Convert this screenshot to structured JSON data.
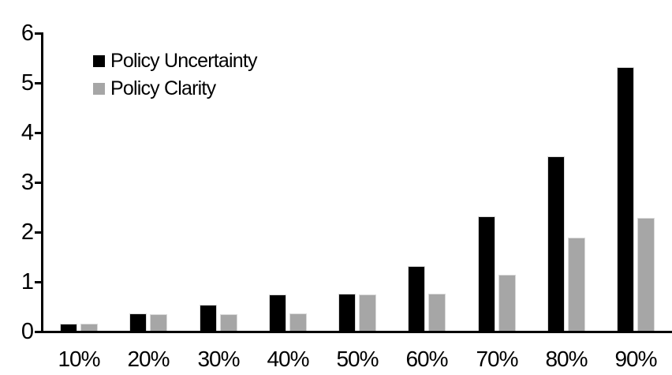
{
  "chart_data": {
    "type": "bar",
    "title": "",
    "xlabel": "",
    "ylabel": "",
    "categories": [
      "10%",
      "20%",
      "30%",
      "40%",
      "50%",
      "60%",
      "70%",
      "80%",
      "90%"
    ],
    "series": [
      {
        "name": "Policy Uncertainty",
        "color": "#000000",
        "values": [
          0.15,
          0.35,
          0.52,
          0.73,
          0.75,
          1.3,
          2.3,
          3.5,
          5.3
        ]
      },
      {
        "name": "Policy Clarity",
        "color": "#a6a6a6",
        "values": [
          0.15,
          0.33,
          0.33,
          0.35,
          0.73,
          0.75,
          1.12,
          1.87,
          2.27
        ]
      }
    ],
    "ylim": [
      0,
      6
    ],
    "yticks": [
      0,
      1,
      2,
      3,
      4,
      5,
      6
    ],
    "grid": false,
    "legend_position": "top-left",
    "axis_color": "#000000",
    "bar_outline_color": "#d9d9d9",
    "background_color": "#ffffff"
  }
}
